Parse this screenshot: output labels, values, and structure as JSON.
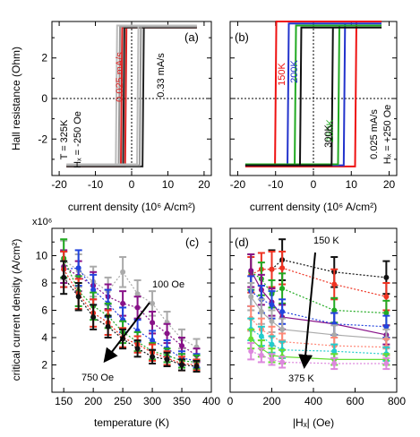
{
  "figure": {
    "panels": [
      {
        "id": "a",
        "label": "(a)",
        "xlabel": "current density (10⁶ A/cm²)",
        "ylabel": "Hall resistance (Ohm)",
        "annotations": [
          "T = 325K",
          "Hₓ = -250 Oe",
          "0.025 mA/s",
          "0.33 mA/s"
        ],
        "xticks": [
          -20,
          -10,
          0,
          10,
          20
        ],
        "yticks": [
          -2,
          0,
          2
        ],
        "xlim": [
          -22,
          22
        ],
        "ylim": [
          -3.8,
          3.8
        ]
      },
      {
        "id": "b",
        "label": "(b)",
        "xlabel": "current density (10⁶ A/cm²)",
        "annotations": [
          "150K",
          "200K",
          "250K",
          "300K",
          "0.025 mA/s",
          "Hₓ = +250 Oe"
        ],
        "xticks": [
          -20,
          -10,
          0,
          10,
          20
        ],
        "yticks": [
          -2,
          0,
          2
        ],
        "xlim": [
          -22,
          22
        ],
        "ylim": [
          -3.8,
          3.8
        ]
      },
      {
        "id": "c",
        "label": "(c)",
        "xlabel": "temperature (K)",
        "ylabel": "critical current density (A/cm²)",
        "yexp": "x10⁶",
        "annotations": [
          "100 Oe",
          "750 Oe"
        ],
        "xticks": [
          150,
          200,
          250,
          300,
          350,
          400
        ],
        "yticks": [
          2,
          4,
          6,
          8,
          10
        ],
        "xlim": [
          130,
          400
        ],
        "ylim": [
          0,
          12
        ]
      },
      {
        "id": "d",
        "label": "(d)",
        "xlabel": "|Hₓ| (Oe)",
        "annotations": [
          "150 K",
          "375 K"
        ],
        "xticks": [
          0,
          200,
          400,
          600,
          800
        ],
        "yticks": [
          2,
          4,
          6,
          8,
          10
        ],
        "xlim": [
          0,
          800
        ],
        "ylim": [
          0,
          12
        ]
      }
    ]
  },
  "chart_data": [
    {
      "panel": "a",
      "type": "line",
      "series": [
        {
          "color": "#dd2222",
          "up_switch": -1.8,
          "down_switch": -2.6,
          "top": 3.5,
          "bottom": -3.35
        },
        {
          "color": "#222222",
          "up_switch": 3.0,
          "down_switch": -2.0,
          "top": 3.5,
          "bottom": -3.35
        },
        {
          "color": "#999999",
          "up_switch": 2.2,
          "down_switch": -3.2,
          "top": 3.55,
          "bottom": -3.3
        },
        {
          "color": "#bbbbbb",
          "up_switch": 1.5,
          "down_switch": -4.0,
          "top": 3.6,
          "bottom": -3.25
        }
      ]
    },
    {
      "panel": "b",
      "type": "line",
      "series": [
        {
          "label": "150K",
          "color": "#ee1111",
          "up_switch": 11.0,
          "down_switch": -9.8,
          "top": 3.8,
          "bottom": -3.35
        },
        {
          "label": "200K",
          "color": "#2233cc",
          "up_switch": 8.0,
          "down_switch": -6.5,
          "top": 3.7,
          "bottom": -3.3
        },
        {
          "label": "250K",
          "color": "#22aa22",
          "up_switch": 6.5,
          "down_switch": -4.6,
          "top": 3.6,
          "bottom": -3.25
        },
        {
          "label": "300K",
          "color": "#111111",
          "up_switch": 4.8,
          "down_switch": -3.2,
          "top": 3.5,
          "bottom": -3.3
        }
      ]
    },
    {
      "panel": "c",
      "type": "line",
      "x": [
        150,
        175,
        200,
        225,
        250,
        275,
        300,
        325,
        350,
        375
      ],
      "series": [
        {
          "field": "100 Oe",
          "color": "#aaaaaa",
          "values": [
            9.7,
            8.9,
            8.1,
            7.4,
            8.8,
            7.2,
            6.5,
            5.1,
            3.9,
            3.3
          ],
          "errors": [
            1.4,
            1.2,
            1.1,
            1.0,
            1.1,
            1.0,
            0.9,
            0.8,
            0.7,
            0.6
          ]
        },
        {
          "field": "",
          "color": "#881188",
          "values": [
            9.2,
            8.5,
            7.8,
            7.0,
            6.5,
            6.2,
            5.1,
            4.3,
            3.4,
            2.7
          ],
          "errors": [
            1.2,
            1.1,
            1.0,
            0.9,
            0.9,
            0.8,
            0.8,
            0.7,
            0.6,
            0.5
          ]
        },
        {
          "field": "",
          "color": "#2244dd",
          "values": [
            9.0,
            9.1,
            7.5,
            6.5,
            5.3,
            4.5,
            3.8,
            3.2,
            2.5,
            2.3
          ],
          "errors": [
            1.3,
            1.3,
            1.1,
            1.0,
            0.9,
            0.8,
            0.7,
            0.6,
            0.5,
            0.5
          ]
        },
        {
          "field": "",
          "color": "#22aa22",
          "values": [
            9.8,
            7.4,
            6.3,
            5.6,
            4.4,
            3.7,
            3.0,
            2.7,
            2.3,
            2.2
          ],
          "errors": [
            1.4,
            1.1,
            1.0,
            0.9,
            0.8,
            0.7,
            0.6,
            0.5,
            0.5,
            0.5
          ]
        },
        {
          "field": "",
          "color": "#ee3322",
          "values": [
            9.0,
            7.2,
            5.8,
            5.1,
            4.0,
            3.5,
            2.9,
            2.5,
            2.1,
            2.0
          ],
          "errors": [
            1.3,
            1.1,
            1.0,
            0.9,
            0.7,
            0.6,
            0.6,
            0.5,
            0.5,
            0.4
          ]
        },
        {
          "field": "750 Oe",
          "color": "#111111",
          "values": [
            8.4,
            7.0,
            5.5,
            4.8,
            3.9,
            3.2,
            2.6,
            2.4,
            2.0,
            1.9
          ],
          "errors": [
            1.2,
            1.0,
            0.9,
            0.8,
            0.7,
            0.6,
            0.5,
            0.5,
            0.4,
            0.4
          ]
        }
      ]
    },
    {
      "panel": "d",
      "type": "line",
      "x": [
        100,
        150,
        200,
        250,
        500,
        750
      ],
      "series": [
        {
          "temperature": "150 K",
          "color": "#111111",
          "values": [
            null,
            null,
            9.0,
            9.7,
            8.8,
            8.4
          ],
          "errors": [
            0,
            0,
            1.4,
            1.5,
            1.1,
            1.2
          ],
          "style": "dotted"
        },
        {
          "temperature": "",
          "color": "#ee3322",
          "values": [
            8.6,
            9.0,
            9.0,
            9.1,
            7.9,
            7.0
          ],
          "errors": [
            1.3,
            1.2,
            1.3,
            1.2,
            1.1,
            1.0
          ],
          "style": "dotted"
        },
        {
          "temperature": "",
          "color": "#22aa22",
          "values": [
            8.8,
            8.3,
            7.2,
            7.6,
            6.0,
            5.8
          ],
          "errors": [
            1.3,
            1.2,
            1.0,
            1.1,
            0.9,
            0.9
          ],
          "style": "dotted"
        },
        {
          "temperature": "",
          "color": "#881188",
          "values": [
            8.9,
            7.5,
            6.6,
            5.5,
            5.0,
            4.2
          ],
          "errors": [
            1.2,
            1.1,
            1.0,
            0.9,
            0.8,
            0.7
          ],
          "style": "solid"
        },
        {
          "temperature": "",
          "color": "#2244dd",
          "values": [
            7.4,
            6.8,
            6.4,
            5.9,
            5.0,
            4.8
          ],
          "errors": [
            1.1,
            1.0,
            1.0,
            0.9,
            0.8,
            0.8
          ],
          "style": "dotted"
        },
        {
          "temperature": "",
          "color": "#aaaaaa",
          "values": [
            7.0,
            5.9,
            5.2,
            4.6,
            4.2,
            3.9
          ],
          "errors": [
            1.0,
            0.9,
            0.8,
            0.8,
            0.7,
            0.7
          ],
          "style": "solid"
        },
        {
          "temperature": "",
          "color": "#ff8877",
          "values": [
            5.4,
            4.6,
            4.1,
            3.7,
            3.4,
            3.3
          ],
          "errors": [
            0.9,
            0.8,
            0.7,
            0.6,
            0.6,
            0.6
          ],
          "style": "dotted"
        },
        {
          "temperature": "",
          "color": "#22cccc",
          "values": [
            4.6,
            4.1,
            3.5,
            3.1,
            3.0,
            2.8
          ],
          "errors": [
            0.8,
            0.7,
            0.6,
            0.6,
            0.5,
            0.5
          ],
          "style": "dotted"
        },
        {
          "temperature": "",
          "color": "#66dd33",
          "values": [
            3.9,
            3.2,
            2.7,
            2.6,
            2.4,
            2.4
          ],
          "errors": [
            0.7,
            0.6,
            0.5,
            0.5,
            0.4,
            0.4
          ],
          "style": "solid"
        },
        {
          "temperature": "375 K",
          "color": "#dd88dd",
          "values": [
            3.0,
            2.7,
            2.4,
            2.2,
            2.1,
            2.1
          ],
          "errors": [
            0.6,
            0.5,
            0.4,
            0.4,
            0.4,
            0.4
          ],
          "style": "dotted"
        }
      ]
    }
  ]
}
